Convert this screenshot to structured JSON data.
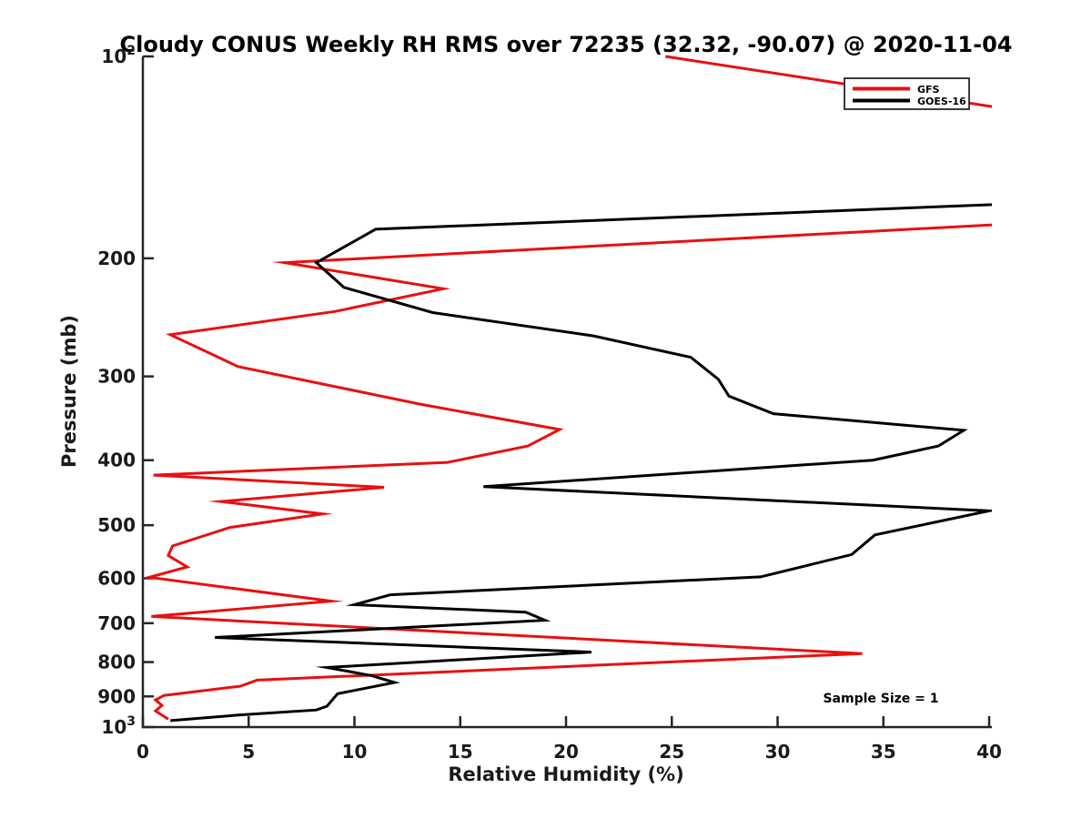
{
  "chart_data": {
    "type": "line",
    "title": "Cloudy CONUS Weekly RH RMS over 72235 (32.32, -90.07) @ 2020-11-04",
    "xlabel": "Relative Humidity (%)",
    "ylabel": "Pressure (mb)",
    "annotation": "Sample Size = 1",
    "grid": false,
    "x_axis": {
      "min": 0,
      "max": 40,
      "ticks": [
        0,
        5,
        10,
        15,
        20,
        25,
        30,
        35,
        40
      ]
    },
    "y_axis": {
      "scale": "log",
      "min": 100,
      "max": 1000,
      "inverted": true,
      "ticks": [
        100,
        200,
        300,
        400,
        500,
        600,
        700,
        800,
        900,
        1000
      ],
      "tick_labels": [
        "10^2",
        "200",
        "300",
        "400",
        "500",
        "600",
        "700",
        "800",
        "900",
        "10^3"
      ]
    },
    "legend": {
      "position": "top-right",
      "entries": [
        {
          "label": "GFS",
          "color": "#e81010"
        },
        {
          "label": "GOES-16",
          "color": "#000000"
        }
      ]
    },
    "note": "Series points are [pressure_mb, rh_rms_percent] read from the plot; RH values above 40 extend off the chart and are clipped.",
    "series": [
      {
        "name": "GFS",
        "color": "#e81010",
        "points_p_rh": [
          [
            100,
            24.7
          ],
          [
            150,
            61.0
          ],
          [
            175,
            45.0
          ],
          [
            203,
            6.7
          ],
          [
            222,
            14.2
          ],
          [
            240,
            9.1
          ],
          [
            260,
            1.3
          ],
          [
            290,
            4.5
          ],
          [
            330,
            13.1
          ],
          [
            360,
            19.7
          ],
          [
            381,
            18.2
          ],
          [
            403,
            14.4
          ],
          [
            421,
            0.5
          ],
          [
            439,
            11.4
          ],
          [
            461,
            3.7
          ],
          [
            481,
            8.5
          ],
          [
            504,
            4.1
          ],
          [
            537,
            1.4
          ],
          [
            555,
            1.2
          ],
          [
            577,
            2.1
          ],
          [
            598,
            0.3
          ],
          [
            649,
            8.9
          ],
          [
            684,
            0.4
          ],
          [
            777,
            34.0
          ],
          [
            851,
            5.4
          ],
          [
            869,
            4.6
          ],
          [
            897,
            1.0
          ],
          [
            911,
            0.6
          ],
          [
            928,
            0.9
          ],
          [
            946,
            0.6
          ],
          [
            973,
            1.2
          ]
        ]
      },
      {
        "name": "GOES-16",
        "color": "#000000",
        "points_p_rh": [
          [
            164,
            45.0
          ],
          [
            181,
            11.0
          ],
          [
            203,
            8.2
          ],
          [
            221,
            9.5
          ],
          [
            241,
            13.7
          ],
          [
            261,
            21.3
          ],
          [
            281,
            25.9
          ],
          [
            303,
            27.2
          ],
          [
            321,
            27.7
          ],
          [
            341,
            29.8
          ],
          [
            361,
            38.8
          ],
          [
            381,
            37.6
          ],
          [
            400,
            34.5
          ],
          [
            438,
            16.1
          ],
          [
            476,
            40.0
          ],
          [
            517,
            34.6
          ],
          [
            553,
            33.5
          ],
          [
            597,
            29.2
          ],
          [
            635,
            11.7
          ],
          [
            657,
            10.0
          ],
          [
            674,
            18.1
          ],
          [
            693,
            19.0
          ],
          [
            735,
            3.4
          ],
          [
            773,
            21.2
          ],
          [
            815,
            8.7
          ],
          [
            838,
            10.8
          ],
          [
            858,
            11.9
          ],
          [
            892,
            9.2
          ],
          [
            931,
            8.7
          ],
          [
            943,
            8.2
          ],
          [
            959,
            4.6
          ],
          [
            978,
            1.3
          ]
        ]
      }
    ]
  }
}
